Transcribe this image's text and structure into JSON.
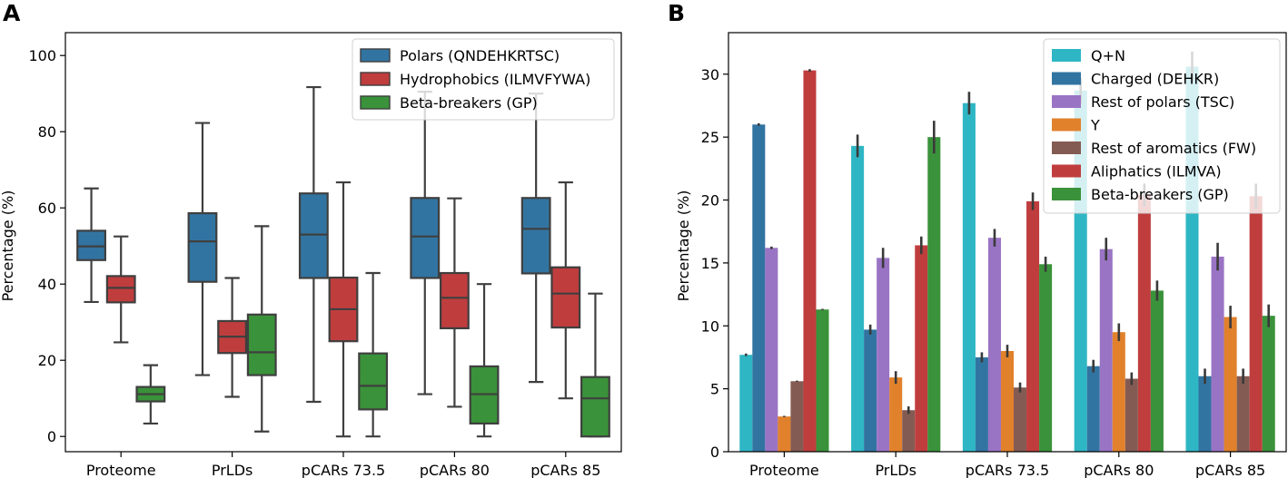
{
  "chart_data": [
    {
      "panel": "A",
      "type": "box",
      "ylabel": "Percentage (%)",
      "ylim": [
        -4,
        106
      ],
      "yticks": [
        0,
        20,
        40,
        60,
        80,
        100
      ],
      "categories": [
        "Proteome",
        "PrLDs",
        "pCARs 73.5",
        "pCARs 80",
        "pCARs 85"
      ],
      "legend_position": "top-right",
      "series": [
        {
          "name": "Polars (QNDEHKRTSC)",
          "color": "#3274a1",
          "boxes": [
            {
              "whislo": 35.3,
              "q1": 46.3,
              "med": 49.9,
              "q3": 54.0,
              "whishi": 65.1
            },
            {
              "whislo": 16.1,
              "q1": 40.6,
              "med": 51.2,
              "q3": 58.6,
              "whishi": 82.3
            },
            {
              "whislo": 9.1,
              "q1": 41.6,
              "med": 53.0,
              "q3": 63.8,
              "whishi": 91.7
            },
            {
              "whislo": 11.1,
              "q1": 41.6,
              "med": 52.5,
              "q3": 62.6,
              "whishi": 90.5
            },
            {
              "whislo": 14.3,
              "q1": 42.8,
              "med": 54.5,
              "q3": 62.6,
              "whishi": 90.0
            }
          ]
        },
        {
          "name": "Hydrophobics (ILMVFYWA)",
          "color": "#c03d3e",
          "boxes": [
            {
              "whislo": 24.7,
              "q1": 35.2,
              "med": 39.0,
              "q3": 42.1,
              "whishi": 52.5
            },
            {
              "whislo": 10.4,
              "q1": 21.9,
              "med": 26.2,
              "q3": 30.3,
              "whishi": 41.6
            },
            {
              "whislo": 0.0,
              "q1": 25.0,
              "med": 33.4,
              "q3": 41.7,
              "whishi": 66.7
            },
            {
              "whislo": 7.8,
              "q1": 28.4,
              "med": 36.4,
              "q3": 42.9,
              "whishi": 62.5
            },
            {
              "whislo": 10.0,
              "q1": 28.6,
              "med": 37.5,
              "q3": 44.4,
              "whishi": 66.7
            }
          ]
        },
        {
          "name": "Beta-breakers (GP)",
          "color": "#3a923a",
          "boxes": [
            {
              "whislo": 3.4,
              "q1": 9.2,
              "med": 11.1,
              "q3": 13.0,
              "whishi": 18.7
            },
            {
              "whislo": 1.3,
              "q1": 16.1,
              "med": 22.1,
              "q3": 32.0,
              "whishi": 55.2
            },
            {
              "whislo": 0.0,
              "q1": 7.1,
              "med": 13.3,
              "q3": 21.8,
              "whishi": 42.9
            },
            {
              "whislo": 0.0,
              "q1": 3.4,
              "med": 11.1,
              "q3": 18.4,
              "whishi": 40.0
            },
            {
              "whislo": 0.0,
              "q1": 0.0,
              "med": 10.0,
              "q3": 15.6,
              "whishi": 37.5
            }
          ]
        }
      ]
    },
    {
      "panel": "B",
      "type": "bar",
      "ylabel": "Percentage (%)",
      "ylim": [
        0,
        33.3
      ],
      "yticks": [
        0,
        5,
        10,
        15,
        20,
        25,
        30
      ],
      "categories": [
        "Proteome",
        "PrLDs",
        "pCARs 73.5",
        "pCARs 80",
        "pCARs 85"
      ],
      "legend_position": "top-right",
      "series": [
        {
          "name": "Q+N",
          "color": "#2eb6c4",
          "values": [
            7.7,
            24.3,
            27.7,
            28.7,
            30.6
          ],
          "errors": [
            0.1,
            0.9,
            0.9,
            1.0,
            1.2
          ]
        },
        {
          "name": "Charged (DEHKR)",
          "color": "#3274a1",
          "values": [
            26.0,
            9.7,
            7.5,
            6.8,
            6.0
          ],
          "errors": [
            0.1,
            0.4,
            0.4,
            0.5,
            0.6
          ]
        },
        {
          "name": "Rest of polars (TSC)",
          "color": "#9a74c4",
          "values": [
            16.2,
            15.4,
            17.0,
            16.1,
            15.5
          ],
          "errors": [
            0.1,
            0.8,
            0.7,
            0.9,
            1.1
          ]
        },
        {
          "name": "Y",
          "color": "#e1812c",
          "values": [
            2.8,
            5.9,
            8.0,
            9.5,
            10.7
          ],
          "errors": [
            0.05,
            0.5,
            0.5,
            0.7,
            0.9
          ]
        },
        {
          "name": "Rest of aromatics (FW)",
          "color": "#845b53",
          "values": [
            5.6,
            3.3,
            5.1,
            5.8,
            6.0
          ],
          "errors": [
            0.05,
            0.3,
            0.4,
            0.5,
            0.6
          ]
        },
        {
          "name": "Aliphatics (ILMVA)",
          "color": "#c03d3e",
          "values": [
            30.3,
            16.4,
            19.9,
            20.4,
            20.3
          ],
          "errors": [
            0.1,
            0.7,
            0.7,
            0.9,
            1.0
          ]
        },
        {
          "name": "Beta-breakers (GP)",
          "color": "#3a923a",
          "values": [
            11.3,
            25.0,
            14.9,
            12.8,
            10.8
          ],
          "errors": [
            0.05,
            1.3,
            0.6,
            0.8,
            0.9
          ]
        }
      ]
    }
  ]
}
